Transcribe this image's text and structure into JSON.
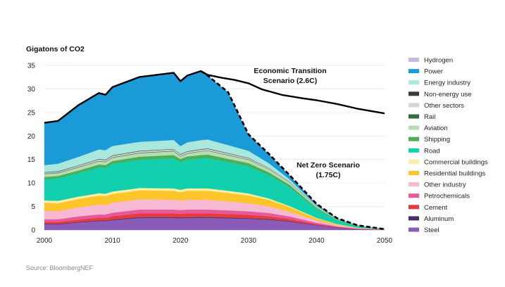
{
  "chart_data": {
    "type": "area",
    "title": "",
    "ylabel": "Gigatons of CO2",
    "xlabel": "",
    "source": "Source: BloombergNEF",
    "xlim": [
      2000,
      2050
    ],
    "ylim": [
      0,
      35
    ],
    "x_ticks": [
      2000,
      2010,
      2020,
      2030,
      2040,
      2050
    ],
    "y_ticks": [
      0,
      5,
      10,
      15,
      20,
      25,
      30,
      35
    ],
    "grid": true,
    "legend_placement": "right",
    "stacked": true,
    "x": [
      2000,
      2002,
      2005,
      2008,
      2009,
      2010,
      2014,
      2019,
      2020,
      2021,
      2023,
      2024,
      2027,
      2030,
      2033,
      2036,
      2040,
      2043,
      2046,
      2050
    ],
    "series": [
      {
        "name": "Steel",
        "color": "#8a5cb8",
        "values": [
          1.25,
          1.2,
          1.6,
          1.9,
          1.9,
          2.1,
          2.6,
          2.6,
          2.5,
          2.6,
          2.6,
          2.6,
          2.5,
          2.4,
          2.2,
          1.8,
          1.0,
          0.5,
          0.2,
          0.05
        ]
      },
      {
        "name": "Aluminum",
        "color": "#4b2a66",
        "values": [
          0.1,
          0.1,
          0.1,
          0.12,
          0.12,
          0.13,
          0.15,
          0.15,
          0.15,
          0.15,
          0.15,
          0.15,
          0.14,
          0.13,
          0.12,
          0.1,
          0.05,
          0.03,
          0.01,
          0
        ]
      },
      {
        "name": "Cement",
        "color": "#e63b3b",
        "values": [
          0.35,
          0.4,
          0.5,
          0.6,
          0.6,
          0.7,
          0.8,
          0.8,
          0.8,
          0.8,
          0.8,
          0.8,
          0.75,
          0.7,
          0.6,
          0.45,
          0.2,
          0.1,
          0.04,
          0.01
        ]
      },
      {
        "name": "Petrochemicals",
        "color": "#e55a9d",
        "values": [
          0.6,
          0.6,
          0.7,
          0.7,
          0.7,
          0.75,
          0.8,
          0.8,
          0.8,
          0.8,
          0.8,
          0.8,
          0.8,
          0.75,
          0.7,
          0.55,
          0.3,
          0.15,
          0.06,
          0.02
        ]
      },
      {
        "name": "Other industry",
        "color": "#f7b8d4",
        "values": [
          1.8,
          1.7,
          1.9,
          2.1,
          2.0,
          2.1,
          2.2,
          2.1,
          2.0,
          2.1,
          2.1,
          2.1,
          1.9,
          1.7,
          1.4,
          1.0,
          0.5,
          0.25,
          0.1,
          0.02
        ]
      },
      {
        "name": "Residential buildings",
        "color": "#fcc62b",
        "values": [
          1.7,
          1.7,
          1.8,
          1.9,
          1.9,
          1.9,
          1.9,
          1.9,
          1.8,
          1.9,
          1.9,
          1.9,
          1.8,
          1.7,
          1.4,
          1.0,
          0.45,
          0.2,
          0.08,
          0.02
        ]
      },
      {
        "name": "Commercial buildings",
        "color": "#fdeea3",
        "values": [
          0.5,
          0.5,
          0.5,
          0.5,
          0.5,
          0.5,
          0.5,
          0.5,
          0.5,
          0.5,
          0.5,
          0.5,
          0.45,
          0.4,
          0.3,
          0.2,
          0.1,
          0.05,
          0.02,
          0
        ]
      },
      {
        "name": "Road",
        "color": "#12cfad",
        "values": [
          4.5,
          4.8,
          5.0,
          5.5,
          5.5,
          5.9,
          6.0,
          6.4,
          5.9,
          6.1,
          6.4,
          6.5,
          6.1,
          5.8,
          5.0,
          4.1,
          1.9,
          0.8,
          0.3,
          0.05
        ]
      },
      {
        "name": "Shipping",
        "color": "#4caf55",
        "values": [
          0.5,
          0.5,
          0.55,
          0.6,
          0.6,
          0.6,
          0.65,
          0.7,
          0.65,
          0.7,
          0.7,
          0.7,
          0.7,
          0.65,
          0.55,
          0.45,
          0.25,
          0.12,
          0.05,
          0.01
        ]
      },
      {
        "name": "Aviation",
        "color": "#b8dcb4",
        "values": [
          0.6,
          0.6,
          0.65,
          0.7,
          0.65,
          0.7,
          0.75,
          0.8,
          0.55,
          0.6,
          0.75,
          0.8,
          0.75,
          0.7,
          0.6,
          0.45,
          0.2,
          0.1,
          0.04,
          0.01
        ]
      },
      {
        "name": "Rail",
        "color": "#2f6e3a",
        "values": [
          0.1,
          0.1,
          0.1,
          0.1,
          0.1,
          0.1,
          0.1,
          0.1,
          0.1,
          0.1,
          0.1,
          0.1,
          0.1,
          0.08,
          0.06,
          0.04,
          0.02,
          0.01,
          0,
          0
        ]
      },
      {
        "name": "Other sectors",
        "color": "#d6d6d6",
        "values": [
          0.2,
          0.2,
          0.25,
          0.3,
          0.3,
          0.3,
          0.3,
          0.3,
          0.3,
          0.3,
          0.3,
          0.3,
          0.28,
          0.25,
          0.2,
          0.15,
          0.07,
          0.03,
          0.01,
          0
        ]
      },
      {
        "name": "Non-energy use",
        "color": "#3a3a3a",
        "values": [
          0.1,
          0.1,
          0.1,
          0.1,
          0.1,
          0.1,
          0.1,
          0.1,
          0.1,
          0.1,
          0.1,
          0.1,
          0.1,
          0.08,
          0.06,
          0.04,
          0.02,
          0.01,
          0,
          0
        ]
      },
      {
        "name": "Energy industry",
        "color": "#a9e8dc",
        "values": [
          1.5,
          1.6,
          1.8,
          2.0,
          2.0,
          2.0,
          1.9,
          1.9,
          1.7,
          1.9,
          1.9,
          1.9,
          1.7,
          1.5,
          1.0,
          0.5,
          0.15,
          0.05,
          0.02,
          0
        ]
      },
      {
        "name": "Power",
        "color": "#1b9ad8",
        "values": [
          9.0,
          9.1,
          11.0,
          12.0,
          11.8,
          12.5,
          13.8,
          14.3,
          13.8,
          14.2,
          14.7,
          13.6,
          11.2,
          3.4,
          1.9,
          0.8,
          0.3,
          0.1,
          0.05,
          0
        ]
      },
      {
        "name": "Hydrogen",
        "color": "#c8b8e2",
        "values": [
          0,
          0,
          0,
          0,
          0,
          0,
          0,
          0,
          0,
          0,
          0,
          0,
          0.05,
          0.1,
          0.1,
          0.1,
          0.05,
          0.03,
          0.02,
          0
        ]
      }
    ],
    "scenarios": [
      {
        "name": "Economic Transition Scenario (2.6C)",
        "label_lines": [
          "Economic Transition",
          "Scenario (2.6C)"
        ],
        "style": "solid",
        "x": [
          2024,
          2026,
          2028,
          2030,
          2032,
          2035,
          2038,
          2040,
          2043,
          2046,
          2050
        ],
        "values": [
          33.0,
          32.4,
          31.9,
          31.2,
          29.9,
          28.7,
          28.0,
          27.6,
          26.8,
          25.8,
          24.8
        ]
      },
      {
        "name": "Net Zero Scenario (1.75C)",
        "label_lines": [
          "Net Zero Scenario",
          "(1.75C)"
        ],
        "style": "dashed"
      }
    ]
  }
}
